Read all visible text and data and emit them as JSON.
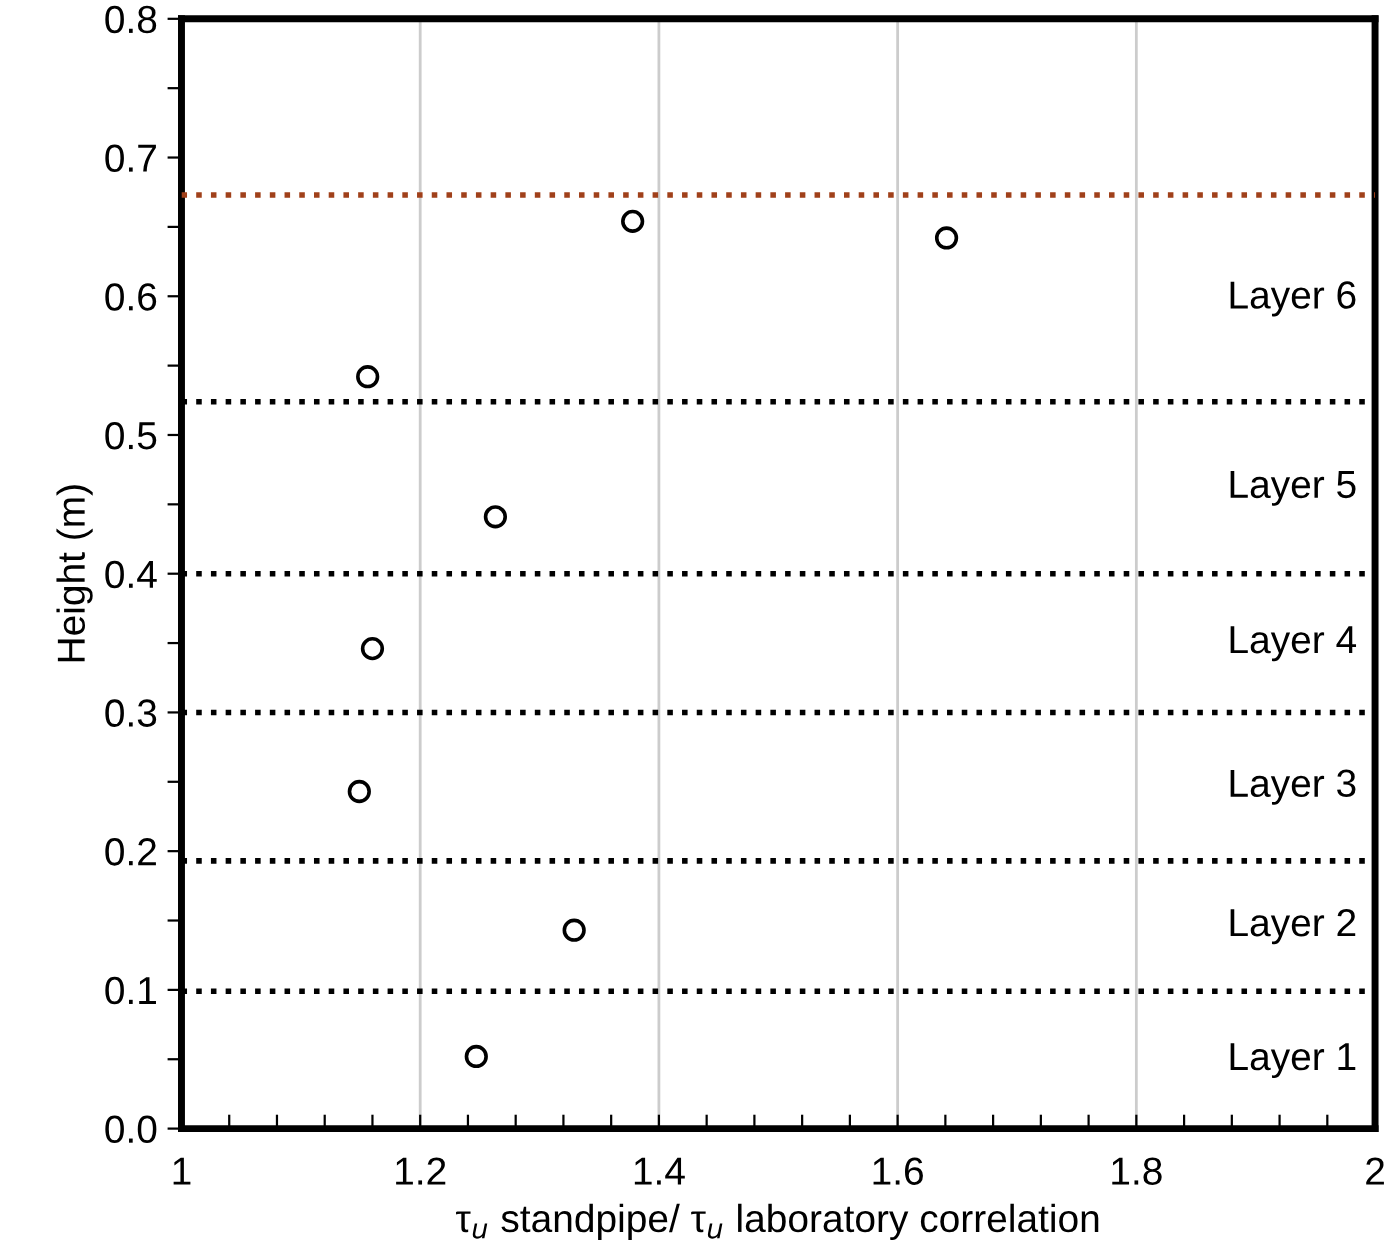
{
  "chart_data": {
    "type": "scatter",
    "xlabel": "τ$_{u}$ standpipe/ τ$_{u}$ laboratory correlation",
    "ylabel": "Height (m)",
    "x": [
      1.247,
      1.329,
      1.149,
      1.16,
      1.263,
      1.156,
      1.378,
      1.641
    ],
    "values": [
      0.052,
      0.143,
      0.243,
      0.346,
      0.441,
      0.542,
      0.654,
      0.642
    ],
    "color": "#000000",
    "marker": "circle",
    "xlim": [
      1,
      2
    ],
    "xticks": [
      1,
      {
        "value": 1.04,
        "label": null
      },
      {
        "value": 1.08,
        "label": null
      },
      {
        "value": 1.12,
        "label": null
      },
      {
        "value": 1.16,
        "label": null
      },
      1.2,
      {
        "value": 1.24,
        "label": null
      },
      {
        "value": 1.28,
        "label": null
      },
      {
        "value": 1.32,
        "label": null
      },
      {
        "value": 1.36,
        "label": null
      },
      1.4,
      {
        "value": 1.44,
        "label": null
      },
      {
        "value": 1.48,
        "label": null
      },
      {
        "value": 1.52,
        "label": null
      },
      {
        "value": 1.56,
        "label": null
      },
      1.6,
      {
        "value": 1.64,
        "label": null
      },
      {
        "value": 1.68,
        "label": null
      },
      {
        "value": 1.72,
        "label": null
      },
      {
        "value": 1.76,
        "label": null
      },
      1.8,
      {
        "value": 1.84,
        "label": null
      },
      {
        "value": 1.88,
        "label": null
      },
      {
        "value": 1.92,
        "label": null
      },
      {
        "value": 1.96,
        "label": null
      },
      2
    ],
    "ylim": [
      0,
      0.8
    ],
    "yticks": [
      {
        "value": 0,
        "label": "0.0"
      },
      {
        "value": 0.05,
        "label": null
      },
      0.1,
      {
        "value": 0.15,
        "label": null
      },
      0.2,
      {
        "value": 0.25,
        "label": null
      },
      0.3,
      {
        "value": 0.35,
        "label": null
      },
      0.4,
      {
        "value": 0.45,
        "label": null
      },
      0.5,
      {
        "value": 0.55,
        "label": null
      },
      0.6,
      {
        "value": 0.65,
        "label": null
      },
      0.7,
      {
        "value": 0.75,
        "label": null
      },
      0.8
    ],
    "grid": "x",
    "ref_lines": [
      {
        "axis": "y",
        "value": 0.099,
        "color": "#000000",
        "line_style": "dotted"
      },
      {
        "axis": "y",
        "value": 0.193,
        "color": "#000000",
        "line_style": "dotted"
      },
      {
        "axis": "y",
        "value": 0.3,
        "color": "#000000",
        "line_style": "dotted"
      },
      {
        "axis": "y",
        "value": 0.4,
        "color": "#000000",
        "line_style": "dotted"
      },
      {
        "axis": "y",
        "value": 0.524,
        "color": "#000000",
        "line_style": "dotted"
      },
      {
        "axis": "y",
        "value": 0.673,
        "color": "#a0401a",
        "line_style": "dotted"
      }
    ],
    "annotations": [
      "Layer 1",
      "Layer 2",
      "Layer 3",
      "Layer 4",
      "Layer 5",
      "Layer 6"
    ]
  }
}
